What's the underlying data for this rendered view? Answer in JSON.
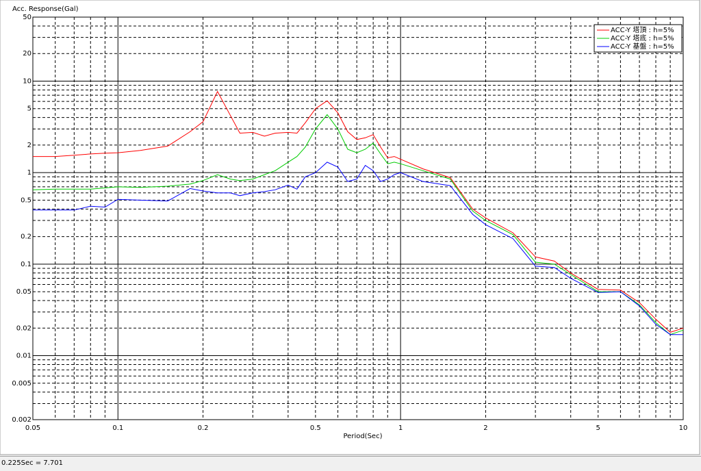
{
  "chart_data": {
    "type": "line",
    "title": "Acc. Response(Gal)",
    "x_label": "Period(Sec)",
    "x_scale": "log",
    "y_scale": "log",
    "grid": true,
    "legend": "upper right",
    "x": [
      0.05,
      0.06,
      0.07,
      0.08,
      0.09,
      0.1,
      0.12,
      0.15,
      0.18,
      0.2,
      0.225,
      0.25,
      0.27,
      0.3,
      0.33,
      0.36,
      0.4,
      0.43,
      0.46,
      0.5,
      0.55,
      0.6,
      0.65,
      0.7,
      0.75,
      0.8,
      0.85,
      0.9,
      0.95,
      1.0,
      1.2,
      1.5,
      1.8,
      2.0,
      2.5,
      3.0,
      3.5,
      4.0,
      5.0,
      6.0,
      7.0,
      8.0,
      9.0,
      10
    ],
    "series": [
      {
        "name": "ACC-Y 塔頂 : h=5%",
        "color": "#ff0000",
        "values": [
          1.5,
          1.5,
          1.55,
          1.6,
          1.63,
          1.65,
          1.75,
          1.95,
          2.8,
          3.6,
          7.701,
          4.2,
          2.7,
          2.75,
          2.5,
          2.7,
          2.75,
          2.7,
          3.5,
          5.0,
          6.1,
          4.5,
          2.8,
          2.3,
          2.4,
          2.6,
          1.9,
          1.45,
          1.5,
          1.4,
          1.1,
          0.88,
          0.4,
          0.32,
          0.22,
          0.12,
          0.108,
          0.08,
          0.053,
          0.052,
          0.038,
          0.025,
          0.018,
          0.02
        ]
      },
      {
        "name": "ACC-Y 塔底 : h=5%",
        "color": "#00cc00",
        "values": [
          0.65,
          0.66,
          0.66,
          0.66,
          0.68,
          0.7,
          0.69,
          0.71,
          0.75,
          0.82,
          0.95,
          0.85,
          0.82,
          0.85,
          0.95,
          1.05,
          1.3,
          1.5,
          1.9,
          3.0,
          4.3,
          3.0,
          1.8,
          1.65,
          1.8,
          2.1,
          1.6,
          1.25,
          1.3,
          1.25,
          1.05,
          0.85,
          0.38,
          0.3,
          0.21,
          0.105,
          0.1,
          0.077,
          0.05,
          0.05,
          0.036,
          0.023,
          0.017,
          0.019
        ]
      },
      {
        "name": "ACC-Y 基盤 : h=5%",
        "color": "#0000ff",
        "values": [
          0.39,
          0.39,
          0.39,
          0.43,
          0.42,
          0.51,
          0.5,
          0.49,
          0.67,
          0.63,
          0.6,
          0.6,
          0.56,
          0.6,
          0.62,
          0.65,
          0.73,
          0.66,
          0.9,
          1.0,
          1.3,
          1.15,
          0.8,
          0.85,
          1.2,
          1.05,
          0.8,
          0.85,
          0.95,
          1.0,
          0.8,
          0.72,
          0.35,
          0.27,
          0.19,
          0.095,
          0.092,
          0.07,
          0.049,
          0.05,
          0.035,
          0.022,
          0.017,
          0.017
        ]
      }
    ],
    "xlim": [
      0.05,
      10
    ],
    "xticks": [
      0.05,
      0.1,
      0.2,
      0.5,
      1,
      2,
      5,
      10
    ],
    "x_minor_ticks": [
      0.06,
      0.07,
      0.08,
      0.09,
      0.3,
      0.4,
      0.6,
      0.7,
      0.8,
      0.9,
      3,
      4,
      6,
      7,
      8,
      9
    ],
    "ylim": [
      0.002,
      50
    ],
    "yticks": [
      0.002,
      0.005,
      0.01,
      0.02,
      0.05,
      0.1,
      0.2,
      0.5,
      1,
      2,
      5,
      10,
      20,
      50
    ],
    "y_minor_ticks": [
      0.003,
      0.004,
      0.006,
      0.007,
      0.008,
      0.009,
      0.03,
      0.04,
      0.06,
      0.07,
      0.08,
      0.09,
      0.3,
      0.4,
      0.6,
      0.7,
      0.8,
      0.9,
      3,
      4,
      6,
      7,
      8,
      9,
      30,
      40
    ]
  },
  "status_text": "0.225Sec = 7.701"
}
